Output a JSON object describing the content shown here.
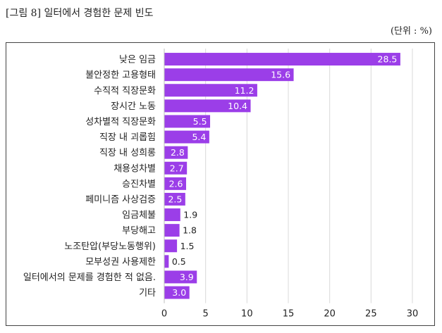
{
  "page": {
    "figure_title": "[그림 8] 일터에서 경험한 문제 빈도",
    "unit_note": "(단위 : %)"
  },
  "chart_data": {
    "type": "bar",
    "orientation": "horizontal",
    "categories": [
      "낮은 임금",
      "불안정한 고용형태",
      "수직적 직장문화",
      "장시간 노동",
      "성차별적 직장문화",
      "직장 내 괴롭힘",
      "직장 내 성희롱",
      "채용성차별",
      "승진차별",
      "페미니즘 사상검증",
      "임금체불",
      "부당해고",
      "노조탄압(부당노동행위)",
      "모부성권 사용제한",
      "일터에서의 문제를 경험한 적 없음.",
      "기타"
    ],
    "values": [
      28.5,
      15.6,
      11.2,
      10.4,
      5.5,
      5.4,
      2.8,
      2.7,
      2.6,
      2.5,
      1.9,
      1.8,
      1.5,
      0.5,
      3.9,
      3.0
    ],
    "value_labels": [
      "28.5",
      "15.6",
      "11.2",
      "10.4",
      "5.5",
      "5.4",
      "2.8",
      "2.7",
      "2.6",
      "2.5",
      "1.9",
      "1.8",
      "1.5",
      "0.5",
      "3.9",
      "3.0"
    ],
    "label_inside": [
      true,
      true,
      true,
      true,
      true,
      true,
      true,
      true,
      true,
      true,
      false,
      false,
      false,
      false,
      true,
      true
    ],
    "xlim": [
      0,
      30
    ],
    "xticks": [
      "0",
      "5",
      "10",
      "15",
      "20",
      "25",
      "30"
    ],
    "grid": "vertical",
    "bar_color": "#9b3ee8",
    "grid_color": "#d9d9d9"
  }
}
